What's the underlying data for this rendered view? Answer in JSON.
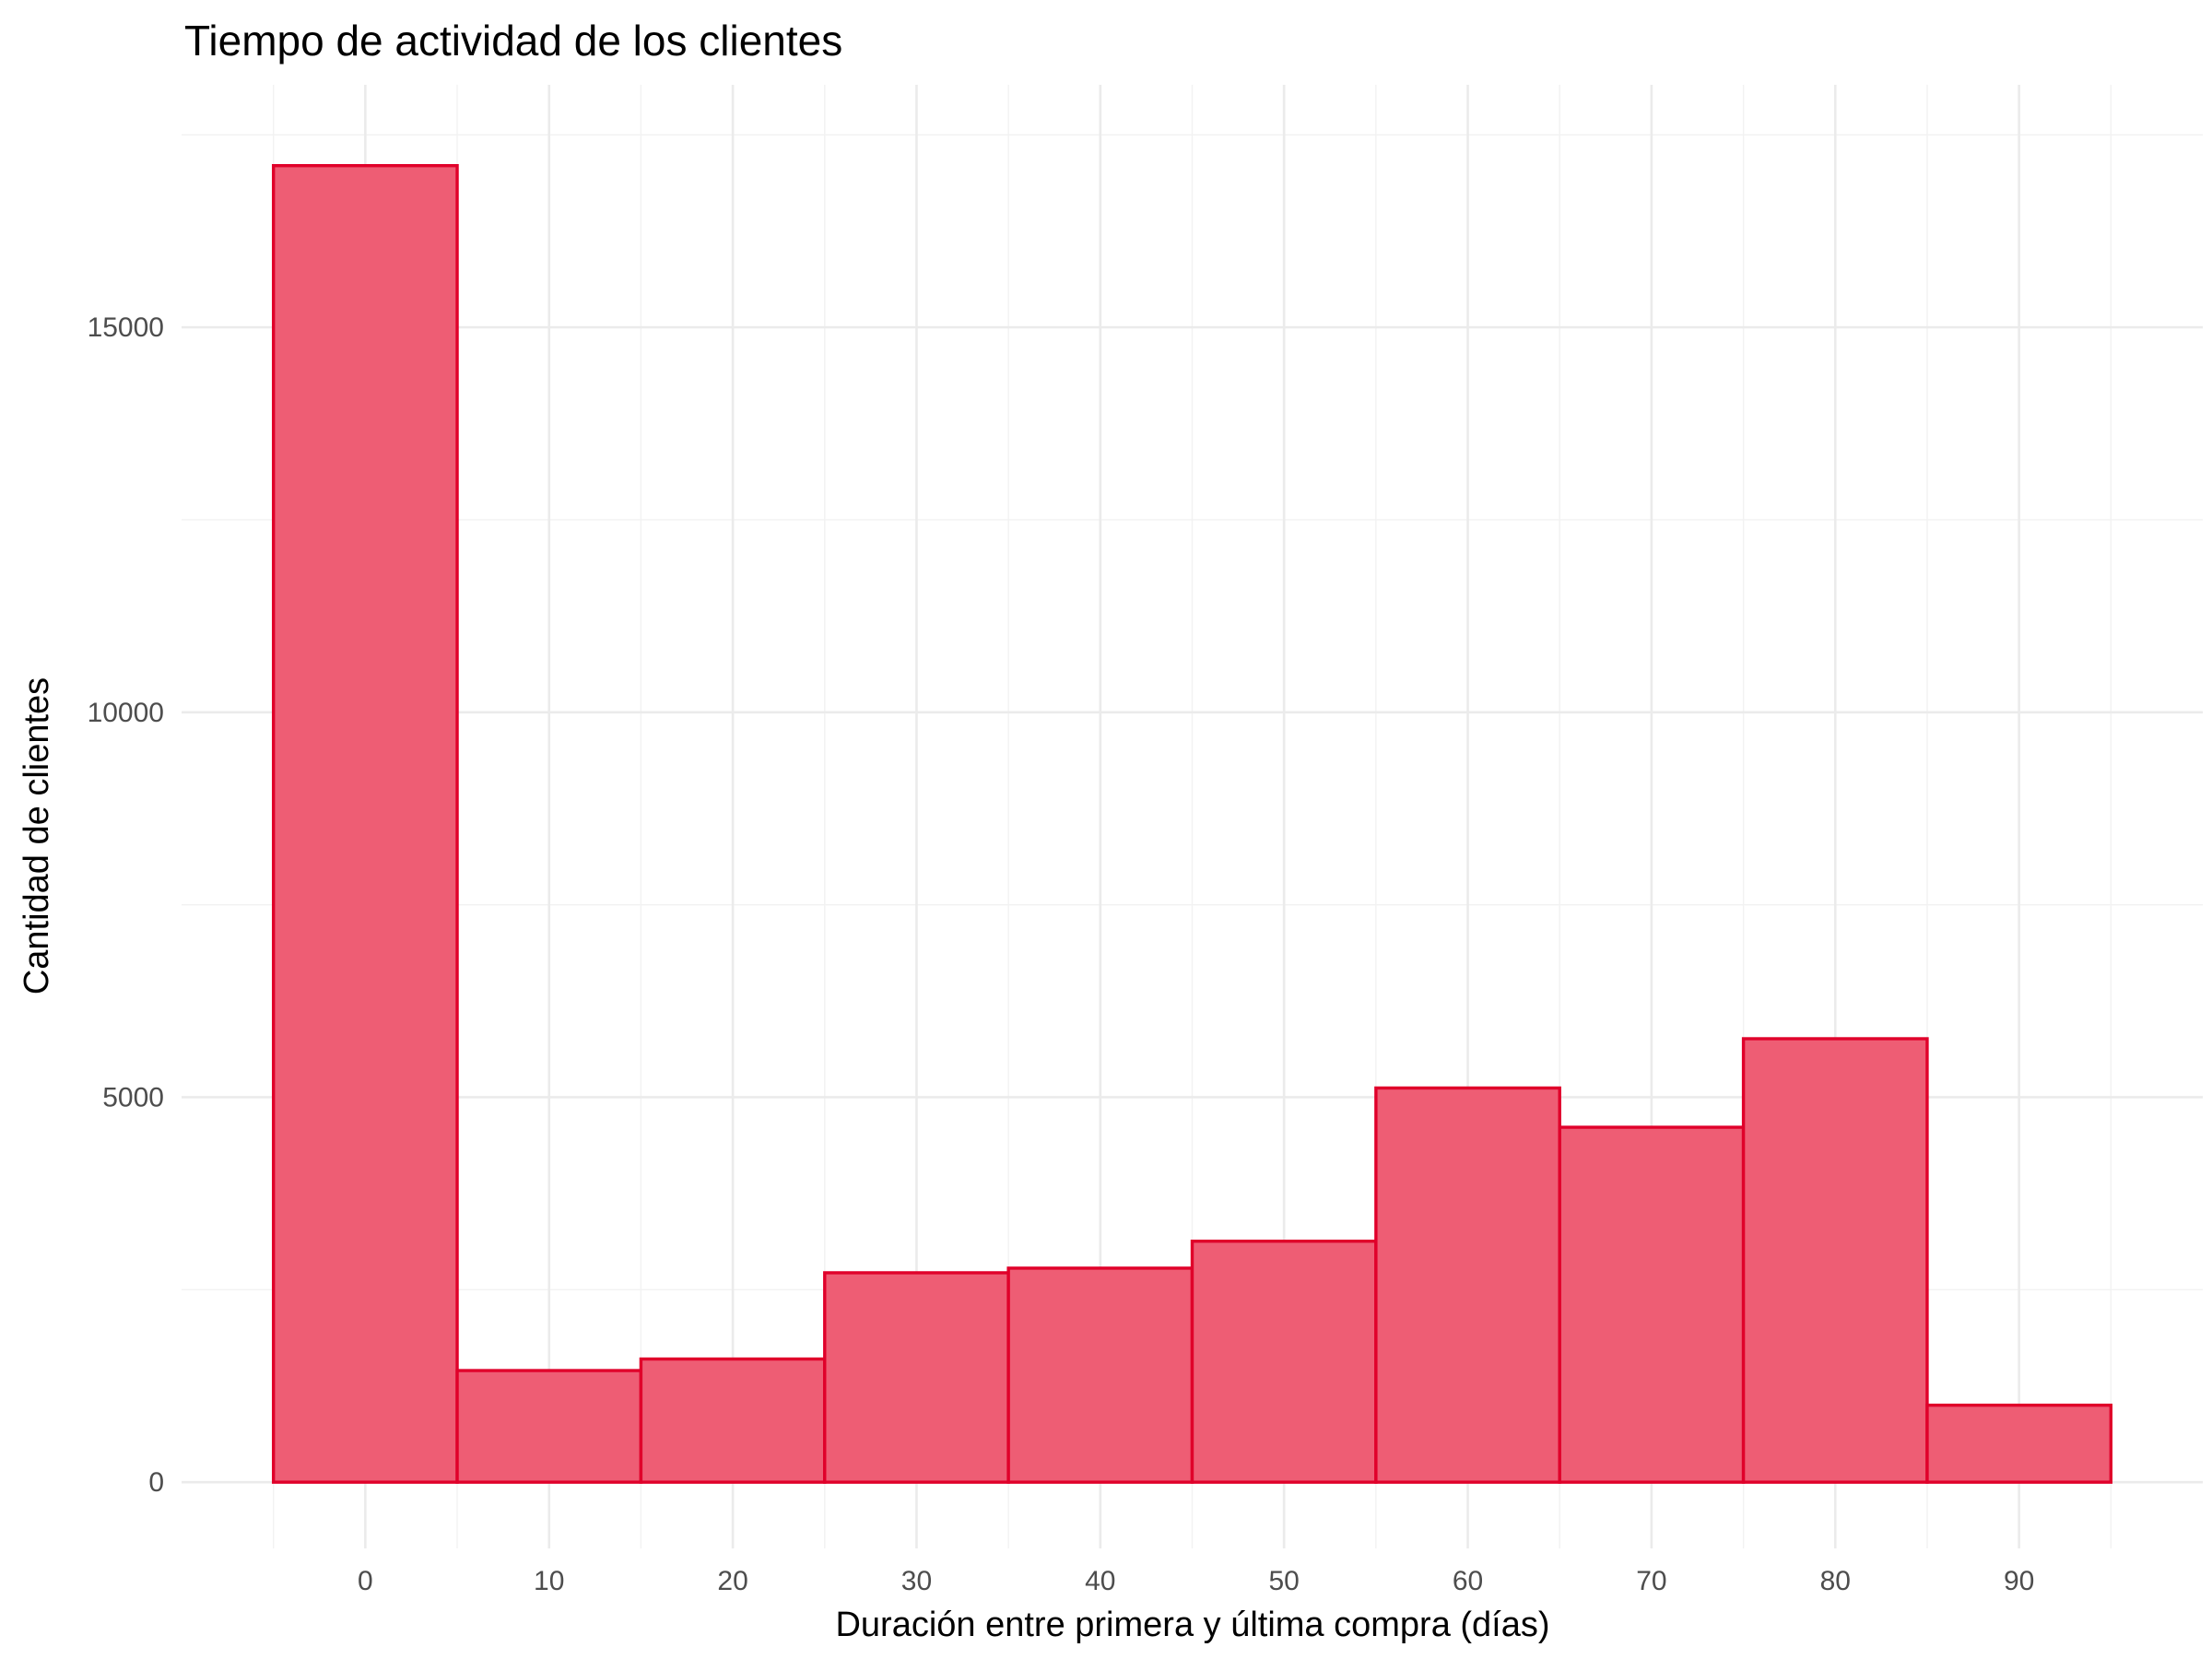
{
  "chart_data": {
    "type": "bar",
    "title": "Tiempo de actividad de los clientes",
    "xlabel": "Duración entre primera y última compra (días)",
    "ylabel": "Cantidad de clientes",
    "bin_width": 10,
    "bin_centers": [
      0,
      10,
      20,
      30,
      40,
      50,
      60,
      70,
      80,
      90
    ],
    "values": [
      17100,
      1450,
      1600,
      2720,
      2780,
      3130,
      5120,
      4610,
      5760,
      1000
    ],
    "xlim": [
      -10,
      100
    ],
    "ylim": [
      -860,
      18150
    ],
    "x_ticks": [
      0,
      10,
      20,
      30,
      40,
      50,
      60,
      70,
      80,
      90
    ],
    "y_ticks": [
      0,
      5000,
      10000,
      15000
    ],
    "legend": "none",
    "grid": true,
    "colors": {
      "fill": "#ee5d74",
      "outline": "#e0002a"
    }
  }
}
